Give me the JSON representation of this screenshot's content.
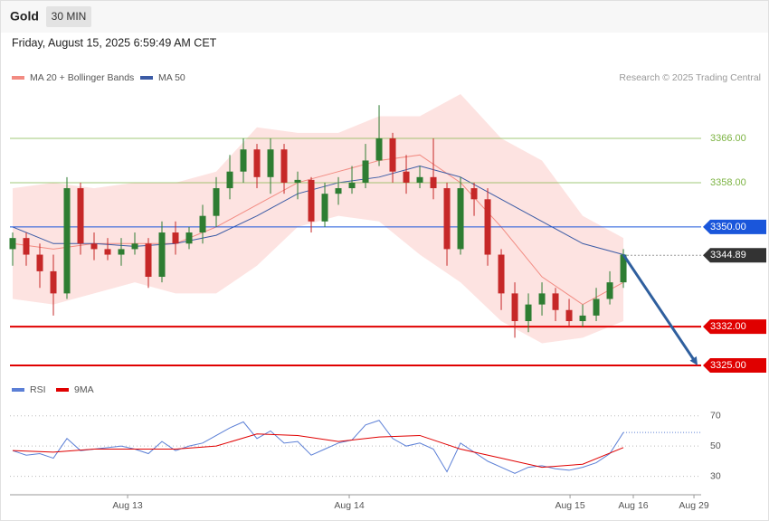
{
  "chart_data": {
    "type": "candlestick",
    "title": "Gold",
    "timeframe": "30 MIN",
    "subtitle": "Friday, August 15, 2025 6:59:49 AM CET",
    "source": "Research © 2025 Trading Central",
    "xlim": [
      -0.2,
      50.73
    ],
    "xticks": [
      {
        "value": 8.47,
        "label": "Aug 13"
      },
      {
        "value": 24.8,
        "label": "Aug 14"
      },
      {
        "value": 41.07,
        "label": "Aug 15"
      },
      {
        "value": 45.73,
        "label": "Aug 16"
      },
      {
        "value": 50.2,
        "label": "Aug 29"
      }
    ],
    "ylim": [
      3324,
      3375.5
    ],
    "up_color": "#2e7d32",
    "down_color": "#c62828",
    "open": [
      3346,
      3348,
      3345,
      3342,
      3338,
      3357,
      3347,
      3346,
      3345,
      3346,
      3347,
      3341,
      3349,
      3347,
      3349,
      3352,
      3357,
      3360,
      3364,
      3359,
      3364,
      3358,
      3358.5,
      3351,
      3356,
      3357,
      3358,
      3362,
      3366,
      3360,
      3358,
      3359,
      3357,
      3346,
      3357,
      3355,
      3345,
      3338,
      3333,
      3336,
      3338,
      3335,
      3333,
      3334,
      3337,
      3340
    ],
    "high": [
      3349,
      3349,
      3347,
      3345,
      3359,
      3358,
      3349,
      3348,
      3348,
      3349,
      3348,
      3351,
      3351,
      3350,
      3354,
      3359,
      3363,
      3366,
      3365,
      3366,
      3365,
      3360,
      3359,
      3358,
      3359,
      3361,
      3365,
      3372,
      3367,
      3363,
      3361,
      3366,
      3358,
      3359,
      3358,
      3357,
      3346,
      3340,
      3338,
      3340,
      3339,
      3337,
      3336,
      3339,
      3342,
      3346
    ],
    "low": [
      3343,
      3343,
      3339,
      3334,
      3337,
      3345,
      3344,
      3344,
      3343,
      3345,
      3339,
      3340,
      3345,
      3346,
      3347,
      3350,
      3355,
      3358,
      3357,
      3356,
      3356,
      3355,
      3349,
      3350,
      3354,
      3356,
      3357,
      3361,
      3358,
      3356,
      3357,
      3355,
      3343,
      3345,
      3352,
      3343,
      3335,
      3330,
      3331,
      3334,
      3333,
      3332,
      3332,
      3333,
      3336,
      3339
    ],
    "close": [
      3348,
      3345,
      3342,
      3338,
      3357,
      3347,
      3346,
      3345,
      3346,
      3347,
      3341,
      3349,
      3347,
      3349,
      3352,
      3357,
      3360,
      3364,
      3359,
      3364,
      3358,
      3358.5,
      3351,
      3356,
      3357,
      3358,
      3362,
      3366,
      3360,
      3358,
      3359,
      3357,
      3346,
      3357,
      3355,
      3345,
      3338,
      3333,
      3336,
      3338,
      3335,
      3333,
      3334,
      3337,
      3340,
      3345
    ],
    "overlays": [
      {
        "name": "MA 20 + Bollinger Bands",
        "color": "#f28b82",
        "band_color": "#fde3e1",
        "x": [
          0,
          3,
          6,
          9,
          12,
          15,
          18,
          21,
          24,
          27,
          30,
          33,
          36,
          39,
          42,
          45
        ],
        "values": [
          3347,
          3346,
          3347,
          3347,
          3347,
          3350,
          3354,
          3358,
          3360,
          3362,
          3363,
          3358,
          3350,
          3341,
          3336,
          3340
        ],
        "upper": [
          3357,
          3358,
          3357,
          3358,
          3358,
          3360,
          3368,
          3367,
          3367,
          3370,
          3370,
          3374,
          3366,
          3362,
          3352,
          3348
        ],
        "lower": [
          3337,
          3336,
          3338,
          3340,
          3338,
          3338,
          3343,
          3350,
          3352,
          3351,
          3345,
          3340,
          3333,
          3329,
          3330,
          3333
        ]
      },
      {
        "name": "MA 50",
        "color": "#3b5ba5",
        "x": [
          0,
          3,
          6,
          9,
          12,
          15,
          18,
          21,
          24,
          27,
          30,
          33,
          36,
          39,
          42,
          45
        ],
        "values": [
          3350,
          3347,
          3347,
          3346.5,
          3347,
          3348.5,
          3352,
          3356,
          3358,
          3359,
          3361,
          3359,
          3355,
          3351,
          3347,
          3345
        ]
      }
    ],
    "levels": [
      {
        "value": 3366,
        "label": "3366.00",
        "color": "#7cb342",
        "boxed": false,
        "width": 1
      },
      {
        "value": 3358,
        "label": "3358.00",
        "color": "#7cb342",
        "boxed": false,
        "width": 1
      },
      {
        "value": 3350,
        "label": "3350.00",
        "color": "#1a56db",
        "boxed": true,
        "width": 1
      },
      {
        "value": 3344.89,
        "label": "3344.89",
        "color": "#333333",
        "boxed": true,
        "width": 1,
        "style": "dotted"
      },
      {
        "value": 3332,
        "label": "3332.00",
        "color": "#e00000",
        "boxed": true,
        "width": 2
      },
      {
        "value": 3325,
        "label": "3325.00",
        "color": "#e00000",
        "boxed": true,
        "width": 2
      }
    ],
    "indicator": {
      "type": "line",
      "ylim": [
        22,
        77
      ],
      "yticks": [
        30,
        50,
        70
      ],
      "series": [
        {
          "name": "RSI",
          "color": "#5b7fd6",
          "x": [
            0,
            1,
            2,
            3,
            4,
            5,
            6,
            7,
            8,
            9,
            10,
            11,
            12,
            13,
            14,
            15,
            16,
            17,
            18,
            19,
            20,
            21,
            22,
            23,
            24,
            25,
            26,
            27,
            28,
            29,
            30,
            31,
            32,
            33,
            34,
            35,
            36,
            37,
            38,
            39,
            40,
            41,
            42,
            43,
            44,
            45
          ],
          "values": [
            47,
            44,
            45,
            42,
            55,
            47,
            48,
            49,
            50,
            48,
            45,
            53,
            47,
            50,
            52,
            57,
            62,
            66,
            55,
            60,
            52,
            53,
            44,
            48,
            52,
            54,
            64,
            67,
            55,
            50,
            52,
            48,
            33,
            52,
            46,
            40,
            36,
            32,
            36,
            37,
            35,
            34,
            36,
            39,
            45,
            59
          ]
        },
        {
          "name": "9MA",
          "color": "#e00000",
          "x": [
            0,
            3,
            6,
            9,
            12,
            15,
            18,
            21,
            24,
            27,
            30,
            33,
            36,
            39,
            42,
            45
          ],
          "values": [
            47,
            46,
            48,
            48,
            48,
            50,
            58,
            57,
            53,
            56,
            57,
            48,
            42,
            36,
            38,
            49
          ]
        }
      ]
    }
  }
}
